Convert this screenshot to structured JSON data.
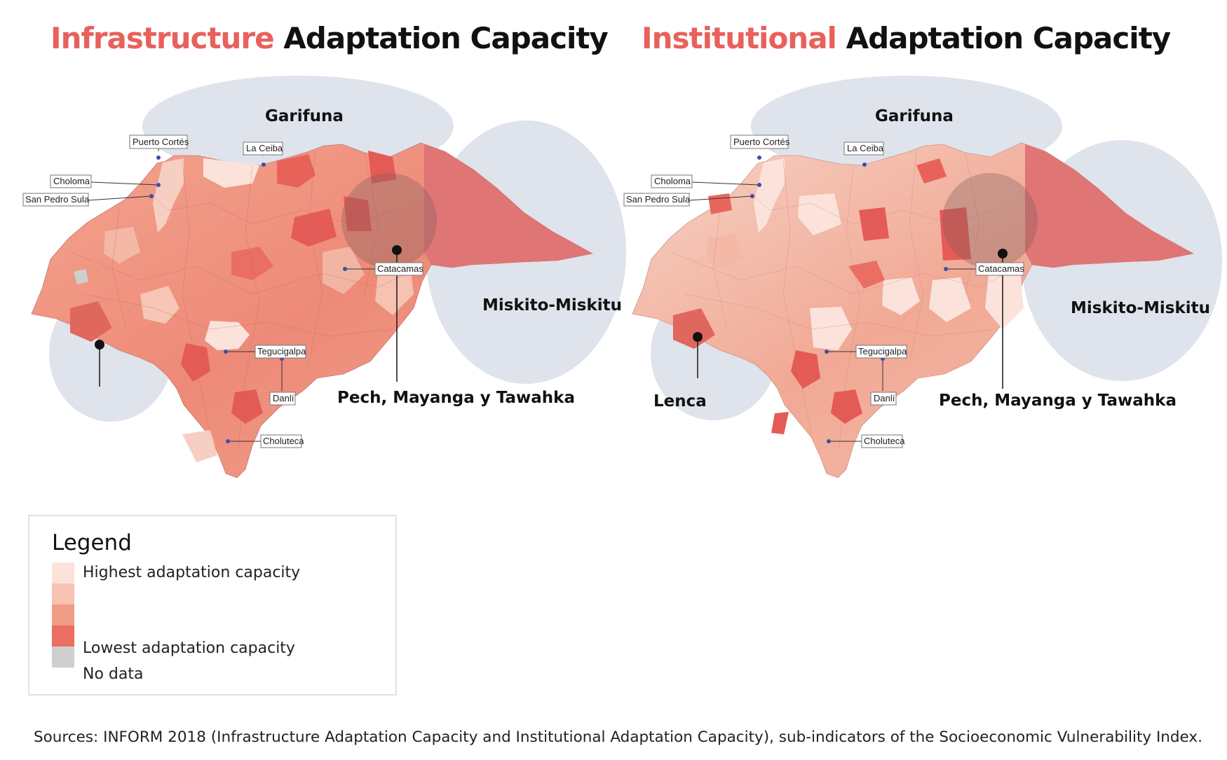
{
  "maps": [
    {
      "title_accent": "Infrastructure",
      "title_rest": "Adaptation Capacity",
      "cities": [
        "Puerto Cortés",
        "La Ceiba",
        "Choloma",
        "San Pedro Sula",
        "Catacamas",
        "Tegucigalpa",
        "Danlí",
        "Choluteca"
      ],
      "groups": [
        "Garifuna",
        "Miskito-Miskitu",
        "Pech, Mayanga y Tawahka"
      ]
    },
    {
      "title_accent": "Institutional",
      "title_rest": "Adaptation Capacity",
      "cities": [
        "Puerto Cortés",
        "La Ceiba",
        "Choloma",
        "San Pedro Sula",
        "Catacamas",
        "Tegucigalpa",
        "Danlí",
        "Choluteca"
      ],
      "groups": [
        "Garifuna",
        "Miskito-Miskitu",
        "Lenca",
        "Pech, Mayanga y Tawahka"
      ]
    }
  ],
  "legend": {
    "title": "Legend",
    "highest": "Highest adaptation  capacity",
    "lowest": "Lowest adaptation  capacity",
    "nodata": "No data"
  },
  "colors": {
    "accent": "#e8615c",
    "scale": [
      "#fbe3dc",
      "#f7c2b1",
      "#f19c86",
      "#ea6e62",
      "#e05552"
    ],
    "no_data": "#cfcfcf",
    "group_ellipse": "#dfe3eb"
  },
  "sources": "Sources: INFORM 2018 (Infrastructure Adaptation  Capacity and Institutional Adaptation  Capacity), sub-indicators of the Socioeconomic Vulnerability Index."
}
